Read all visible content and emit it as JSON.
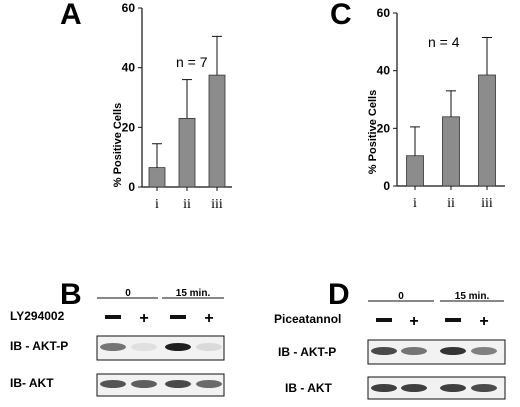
{
  "chart_data": [
    {
      "panel": "A",
      "type": "bar",
      "categories": [
        "i",
        "ii",
        "iii"
      ],
      "values": [
        6.5,
        23,
        37.5
      ],
      "errors": [
        8,
        13,
        13
      ],
      "ylabel": "% Positive Cells",
      "ylim": [
        0,
        60
      ],
      "yticks": [
        "0",
        "20",
        "40",
        "60"
      ],
      "annotation": "n = 7",
      "bar_color": "#8c8c8c"
    },
    {
      "panel": "C",
      "type": "bar",
      "categories": [
        "i",
        "ii",
        "iii"
      ],
      "values": [
        10.5,
        24,
        38.5
      ],
      "errors": [
        10,
        9,
        13
      ],
      "ylabel": "% Positive Cells",
      "ylim": [
        0,
        60
      ],
      "yticks": [
        "0",
        "20",
        "40",
        "60"
      ],
      "annotation": "n = 4",
      "bar_color": "#8c8c8c"
    }
  ],
  "blots": [
    {
      "panel": "B",
      "time_labels": [
        "0",
        "15 min."
      ],
      "treatment": "LY294002",
      "signs": [
        "—",
        "+",
        "—",
        "+"
      ],
      "rows": [
        {
          "label": "IB - AKT-P",
          "intensities": [
            0.55,
            0.05,
            0.95,
            0.08
          ]
        },
        {
          "label": "IB- AKT",
          "intensities": [
            0.7,
            0.65,
            0.75,
            0.6
          ]
        }
      ]
    },
    {
      "panel": "D",
      "time_labels": [
        "0",
        "15 min."
      ],
      "treatment": "Piceatannol",
      "signs": [
        "—",
        "+",
        "—",
        "+"
      ],
      "rows": [
        {
          "label": "IB - AKT-P",
          "intensities": [
            0.75,
            0.55,
            0.85,
            0.5
          ]
        },
        {
          "label": "IB - AKT",
          "intensities": [
            0.8,
            0.8,
            0.8,
            0.75
          ]
        }
      ]
    }
  ]
}
